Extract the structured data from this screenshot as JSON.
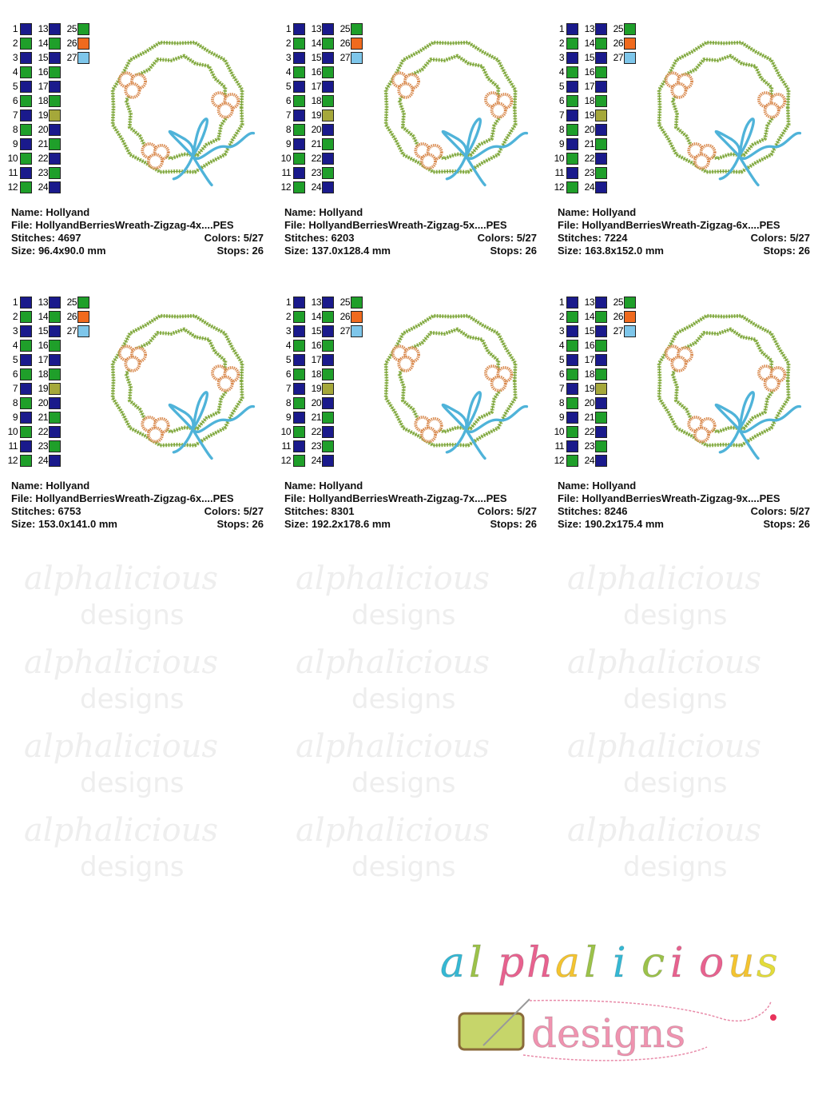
{
  "watermark": {
    "line1": "alphalicious",
    "line2": "designs"
  },
  "palette": {
    "navy": "#1a1a8c",
    "green": "#1f9f2a",
    "olive": "#a5a83a",
    "orange": "#f06a1e",
    "lightblue": "#7ec6ea",
    "leaf": "#8fb44a",
    "berry": "#d98a4f",
    "bow": "#4fb3d9"
  },
  "color_chart": [
    {
      "n": "1",
      "c": "navy"
    },
    {
      "n": "2",
      "c": "green"
    },
    {
      "n": "3",
      "c": "navy"
    },
    {
      "n": "4",
      "c": "green"
    },
    {
      "n": "5",
      "c": "navy"
    },
    {
      "n": "6",
      "c": "green"
    },
    {
      "n": "7",
      "c": "navy"
    },
    {
      "n": "8",
      "c": "green"
    },
    {
      "n": "9",
      "c": "navy"
    },
    {
      "n": "10",
      "c": "green"
    },
    {
      "n": "11",
      "c": "navy"
    },
    {
      "n": "12",
      "c": "green"
    },
    {
      "n": "13",
      "c": "navy"
    },
    {
      "n": "14",
      "c": "green"
    },
    {
      "n": "15",
      "c": "navy"
    },
    {
      "n": "16",
      "c": "green"
    },
    {
      "n": "17",
      "c": "navy"
    },
    {
      "n": "18",
      "c": "green"
    },
    {
      "n": "19",
      "c": "olive"
    },
    {
      "n": "20",
      "c": "navy"
    },
    {
      "n": "21",
      "c": "green"
    },
    {
      "n": "22",
      "c": "navy"
    },
    {
      "n": "23",
      "c": "green"
    },
    {
      "n": "24",
      "c": "navy"
    },
    {
      "n": "25",
      "c": "green"
    },
    {
      "n": "26",
      "c": "orange"
    },
    {
      "n": "27",
      "c": "lightblue"
    }
  ],
  "designs": [
    {
      "name": "Name: Hollyand",
      "file": "File: HollyandBerriesWreath-Zigzag-4x....PES",
      "stitches": "Stitches: 4697",
      "colors": "Colors: 5/27",
      "size": "Size: 96.4x90.0 mm",
      "stops": "Stops: 26"
    },
    {
      "name": "Name: Hollyand",
      "file": "File: HollyandBerriesWreath-Zigzag-5x....PES",
      "stitches": "Stitches: 6203",
      "colors": "Colors: 5/27",
      "size": "Size: 137.0x128.4 mm",
      "stops": "Stops: 26"
    },
    {
      "name": "Name: Hollyand",
      "file": "File: HollyandBerriesWreath-Zigzag-6x....PES",
      "stitches": "Stitches: 7224",
      "colors": "Colors: 5/27",
      "size": "Size: 163.8x152.0 mm",
      "stops": "Stops: 26"
    },
    {
      "name": "Name: Hollyand",
      "file": "File: HollyandBerriesWreath-Zigzag-6x....PES",
      "stitches": "Stitches: 6753",
      "colors": "Colors: 5/27",
      "size": "Size: 153.0x141.0 mm",
      "stops": "Stops: 26"
    },
    {
      "name": "Name: Hollyand",
      "file": "File: HollyandBerriesWreath-Zigzag-7x....PES",
      "stitches": "Stitches: 8301",
      "colors": "Colors: 5/27",
      "size": "Size: 192.2x178.6 mm",
      "stops": "Stops: 26"
    },
    {
      "name": "Name: Hollyand",
      "file": "File: HollyandBerriesWreath-Zigzag-9x....PES",
      "stitches": "Stitches: 8246",
      "colors": "Colors: 5/27",
      "size": "Size: 190.2x175.4 mm",
      "stops": "Stops: 26"
    }
  ],
  "logo": {
    "line1": "alphalicious",
    "line2": "designs",
    "letter_colors": [
      "#35b8d4",
      "#9cc24a",
      "#e8628f",
      "#e8628f",
      "#f4c430",
      "#9cc24a",
      "#35b8d4",
      "#9cc24a",
      "#e8628f",
      "#e8628f",
      "#f4c430",
      "#e3dc3a"
    ],
    "designs_color": "#f093b0"
  }
}
